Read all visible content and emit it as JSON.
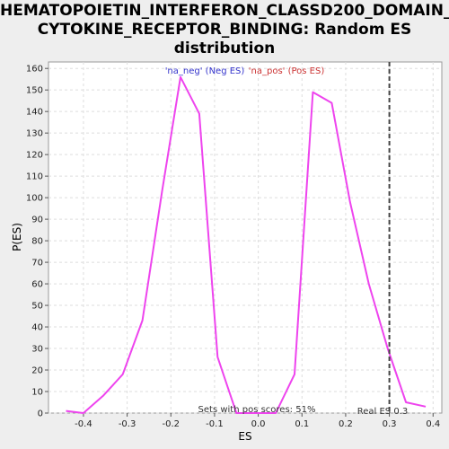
{
  "chart_data": {
    "type": "line",
    "title_lines": [
      "HEMATOPOIETIN_INTERFERON_CLASSD200_DOMAIN_",
      "CYTOKINE_RECEPTOR_BINDING: Random ES",
      "distribution"
    ],
    "xlabel": "ES",
    "ylabel": "P(ES)",
    "xlim": [
      -0.48,
      0.42
    ],
    "ylim": [
      0,
      163
    ],
    "x_ticks": [
      -0.4,
      -0.3,
      -0.2,
      -0.1,
      0.0,
      0.1,
      0.2,
      0.3,
      0.4
    ],
    "x_tick_labels": [
      "-0.4",
      "-0.3",
      "-0.2",
      "-0.1",
      "0.0",
      "0.1",
      "0.2",
      "0.3",
      "0.4"
    ],
    "y_ticks": [
      0,
      10,
      20,
      30,
      40,
      50,
      60,
      70,
      80,
      90,
      100,
      110,
      120,
      130,
      140,
      150,
      160
    ],
    "y_tick_labels": [
      "0",
      "10",
      "20",
      "30",
      "40",
      "50",
      "60",
      "70",
      "80",
      "90",
      "100",
      "110",
      "120",
      "130",
      "140",
      "150",
      "160"
    ],
    "grid": true,
    "legend_position": "top-center",
    "legend": [
      {
        "label": "'na_neg' (Neg ES)",
        "color": "#3333cc"
      },
      {
        "label": "'na_pos' (Pos ES)",
        "color": "#cc3333"
      }
    ],
    "series": [
      {
        "color": "#ee44ee",
        "x": [
          -0.44,
          -0.4,
          -0.355,
          -0.31,
          -0.265,
          -0.22,
          -0.178,
          -0.135,
          -0.093,
          -0.05,
          -0.005,
          0.04,
          0.083,
          0.125,
          0.168,
          0.21,
          0.253,
          0.296,
          0.338,
          0.383
        ],
        "y": [
          1,
          0,
          8,
          18,
          43,
          103,
          156,
          139,
          26,
          0,
          0,
          0,
          18,
          149,
          144,
          98,
          60,
          30,
          5,
          3
        ]
      }
    ],
    "real_es": 0.3,
    "real_es_label": "Real ES 0.3",
    "annotation": "Sets with pos scores: 51%"
  }
}
